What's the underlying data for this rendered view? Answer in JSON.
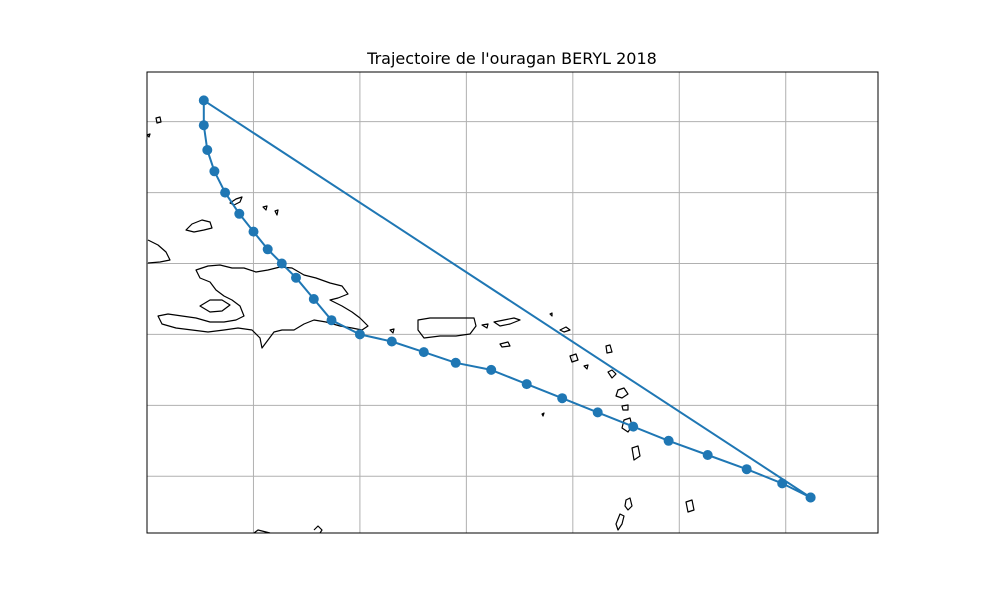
{
  "chart_data": {
    "type": "scatter",
    "title": "Trajectoire de l'ouragan BERYL 2018",
    "xlabel": "",
    "ylabel": "",
    "x_unit": "longitude (°E)",
    "y_unit": "latitude (°N)",
    "xlim": [
      -76,
      -55.4
    ],
    "ylim": [
      7.6,
      20.6
    ],
    "x_gridlines": [
      -73,
      -70,
      -67,
      -64,
      -61,
      -58
    ],
    "y_gridlines": [
      9.2,
      11.2,
      13.2,
      15.2,
      17.2,
      19.2
    ],
    "grid": true,
    "legend": "none",
    "series": [
      {
        "line_color": "#1f77b4",
        "marker": "circle",
        "track": [
          [
            -57.3,
            8.6
          ],
          [
            -58.1,
            9.0
          ],
          [
            -59.1,
            9.4
          ],
          [
            -60.2,
            9.8
          ],
          [
            -61.3,
            10.2
          ],
          [
            -62.3,
            10.6
          ],
          [
            -63.3,
            11.0
          ],
          [
            -64.3,
            11.4
          ],
          [
            -65.3,
            11.8
          ],
          [
            -66.3,
            12.2
          ],
          [
            -67.3,
            12.4
          ],
          [
            -68.2,
            12.7
          ],
          [
            -69.1,
            13.0
          ],
          [
            -70.0,
            13.2
          ],
          [
            -70.8,
            13.6
          ],
          [
            -71.3,
            14.2
          ],
          [
            -71.8,
            14.8
          ],
          [
            -72.2,
            15.2
          ],
          [
            -72.6,
            15.6
          ],
          [
            -73.0,
            16.1
          ],
          [
            -73.4,
            16.6
          ],
          [
            -73.8,
            17.2
          ],
          [
            -74.1,
            17.8
          ],
          [
            -74.3,
            18.4
          ],
          [
            -74.4,
            19.1
          ],
          [
            -74.4,
            19.8
          ],
          [
            -57.3,
            8.6
          ]
        ]
      }
    ]
  }
}
